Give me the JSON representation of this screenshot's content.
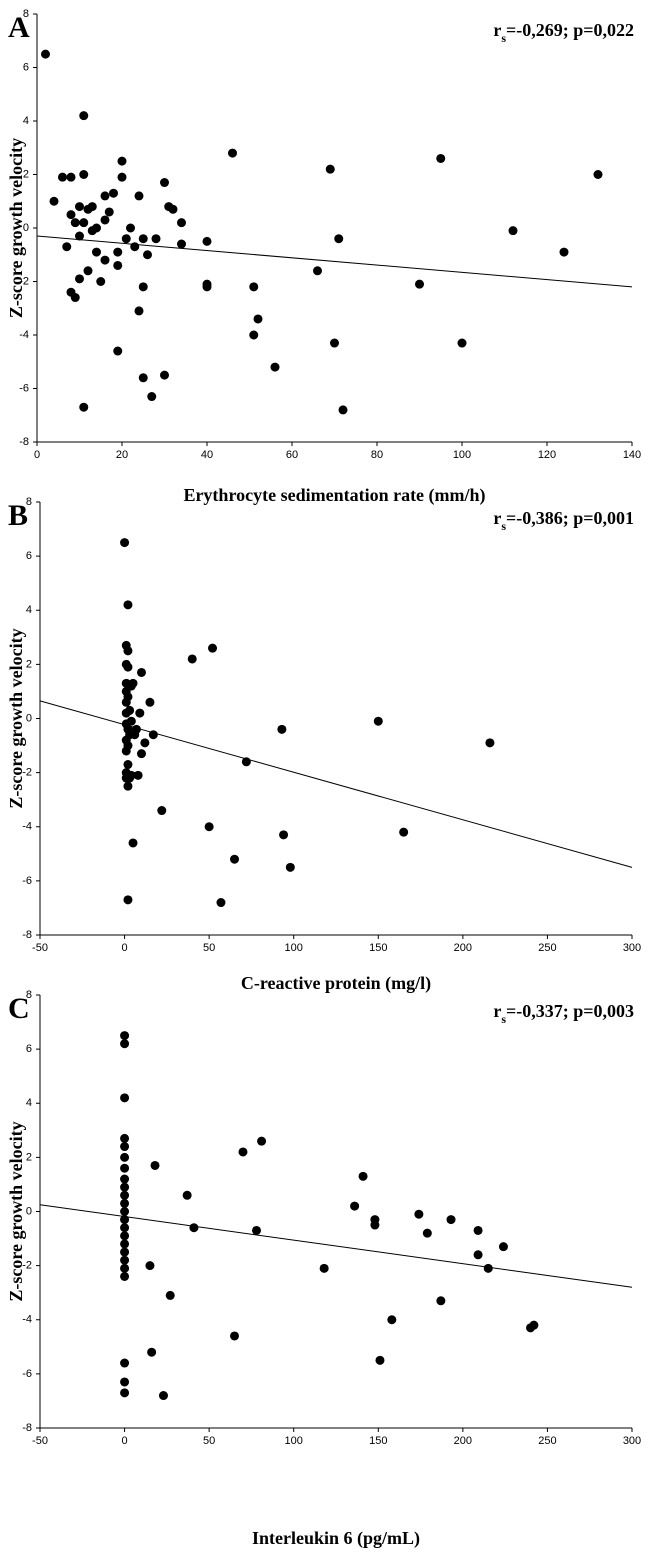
{
  "chart_data": [
    {
      "type": "scatter",
      "panel": "A",
      "annotation": [
        "r",
        "s",
        "=-0,269; p=0,022"
      ],
      "xlabel": "Erythrocyte sedimentation rate (mm/h)",
      "ylabel": "Z-score growth velocity",
      "color": "#000000",
      "xlim": [
        0,
        140
      ],
      "xticks": [
        0,
        20,
        40,
        60,
        80,
        100,
        120,
        140
      ],
      "ylim": [
        -8,
        8
      ],
      "yticks": [
        8,
        6,
        4,
        2,
        0,
        -2,
        -4,
        -6,
        -8
      ],
      "x": [
        2,
        4,
        6,
        7,
        8,
        8,
        8,
        9,
        9,
        10,
        10,
        10,
        11,
        11,
        11,
        11,
        12,
        12,
        13,
        13,
        14,
        14,
        15,
        16,
        16,
        16,
        17,
        18,
        19,
        19,
        19,
        20,
        20,
        21,
        22,
        23,
        24,
        24,
        25,
        25,
        25,
        26,
        27,
        28,
        30,
        30,
        31,
        32,
        34,
        34,
        40,
        40,
        40,
        46,
        51,
        51,
        52,
        56,
        66,
        69,
        70,
        71,
        72,
        90,
        95,
        100,
        112,
        124,
        132
      ],
      "y": [
        6.5,
        1,
        1.9,
        -0.7,
        1.9,
        0.5,
        -2.4,
        -2.6,
        0.2,
        -0.3,
        -1.9,
        0.8,
        4.2,
        2,
        -6.7,
        0.2,
        -1.6,
        0.7,
        0.8,
        -0.1,
        0,
        -0.9,
        -2,
        1.2,
        0.3,
        -1.2,
        0.6,
        1.3,
        -0.9,
        -1.4,
        -4.6,
        2.5,
        1.9,
        -0.4,
        0,
        -0.7,
        1.2,
        -3.1,
        -2.2,
        -0.4,
        -5.6,
        -1,
        -6.3,
        -0.4,
        1.7,
        -5.5,
        0.8,
        0.7,
        0.2,
        -0.6,
        -0.5,
        -2.1,
        -2.2,
        2.8,
        -2.2,
        -4,
        -3.4,
        -5.2,
        -1.6,
        2.2,
        -4.3,
        -0.4,
        -6.8,
        -2.1,
        2.6,
        -4.3,
        -0.1,
        -0.9,
        2
      ],
      "trend_line": {
        "x": [
          0,
          140
        ],
        "y": [
          -0.3,
          -2.2
        ]
      }
    },
    {
      "type": "scatter",
      "panel": "B",
      "annotation": [
        "r",
        "s",
        "=-0,386; p=0,001"
      ],
      "xlabel": "C-reactive protein (mg/l)",
      "ylabel": "Z-score growth velocity",
      "color": "#000000",
      "xlim": [
        -50,
        300
      ],
      "xticks": [
        -50,
        0,
        50,
        100,
        150,
        200,
        250,
        300
      ],
      "ylim": [
        -8,
        8
      ],
      "yticks": [
        8,
        6,
        4,
        2,
        0,
        -2,
        -4,
        -6,
        -8
      ],
      "x": [
        0,
        1,
        1,
        1,
        1,
        1,
        1,
        1,
        1,
        1,
        1,
        1,
        2,
        2,
        2,
        2,
        2,
        2,
        2,
        2,
        2,
        3,
        3,
        3,
        4,
        4,
        4,
        5,
        5,
        6,
        7,
        8,
        9,
        10,
        10,
        12,
        15,
        17,
        22,
        40,
        50,
        52,
        57,
        65,
        72,
        93,
        94,
        98,
        150,
        165,
        216
      ],
      "y": [
        6.5,
        2.7,
        2,
        1.3,
        1,
        0.6,
        0.2,
        -0.2,
        -0.8,
        -1.2,
        -2,
        -2.2,
        4.2,
        2.5,
        1.9,
        0.8,
        -0.4,
        -1,
        -1.7,
        -2.5,
        -6.7,
        0.3,
        -0.6,
        -2.2,
        1.2,
        -0.1,
        -2.1,
        -4.6,
        1.3,
        -0.6,
        -0.4,
        -2.1,
        0.2,
        1.7,
        -1.3,
        -0.9,
        0.6,
        -0.6,
        -3.4,
        2.2,
        -4,
        2.6,
        -6.8,
        -5.2,
        -1.6,
        -0.4,
        -4.3,
        -5.5,
        -0.1,
        -4.2,
        -0.9
      ],
      "trend_line": {
        "x": [
          -50,
          300
        ],
        "y": [
          0.65,
          -5.5
        ]
      }
    },
    {
      "type": "scatter",
      "panel": "C",
      "annotation": [
        "r",
        "s",
        "=-0,337; p=0,003"
      ],
      "xlabel": "Interleukin 6 (pg/mL)",
      "ylabel": "Z-score growth velocity",
      "color": "#000000",
      "xlim": [
        -50,
        300
      ],
      "xticks": [
        -50,
        0,
        50,
        100,
        150,
        200,
        250,
        300
      ],
      "ylim": [
        -8,
        8
      ],
      "yticks": [
        8,
        6,
        4,
        2,
        0,
        -2,
        -4,
        -6,
        -8
      ],
      "x": [
        0,
        0,
        0,
        0,
        0,
        0,
        0,
        0,
        0,
        0,
        0,
        0,
        0,
        0,
        0,
        0,
        0,
        0,
        0,
        0,
        0,
        0,
        0,
        15,
        16,
        18,
        23,
        27,
        37,
        41,
        65,
        70,
        78,
        81,
        118,
        136,
        141,
        148,
        148,
        151,
        158,
        174,
        179,
        187,
        193,
        209,
        209,
        215,
        224,
        240,
        242
      ],
      "y": [
        6.5,
        6.2,
        4.2,
        2.7,
        2.4,
        2,
        1.6,
        1.2,
        0.9,
        0.6,
        0.3,
        0,
        -0.3,
        -0.6,
        -0.9,
        -1.2,
        -1.5,
        -1.8,
        -2.1,
        -2.4,
        -5.6,
        -6.3,
        -6.7,
        -2,
        -5.2,
        1.7,
        -6.8,
        -3.1,
        0.6,
        -0.6,
        -4.6,
        2.2,
        -0.7,
        2.6,
        -2.1,
        0.2,
        1.3,
        -0.3,
        -0.5,
        -5.5,
        -4,
        -0.1,
        -0.8,
        -3.3,
        -0.3,
        -0.7,
        -1.6,
        -2.1,
        -1.3,
        -4.3,
        -4.2
      ],
      "trend_line": {
        "x": [
          -50,
          300
        ],
        "y": [
          0.25,
          -2.8
        ]
      }
    }
  ]
}
